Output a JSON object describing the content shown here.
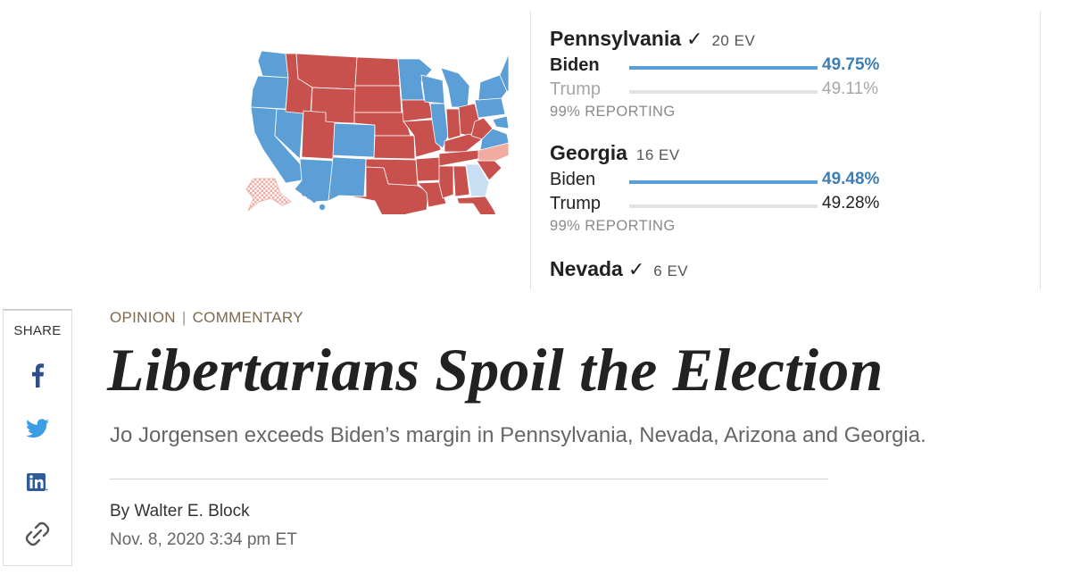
{
  "results": [
    {
      "state": "Pennsylvania",
      "called": true,
      "check": "✓",
      "ev": "20 EV",
      "biden": {
        "name": "Biden",
        "pct": "49.75%",
        "share": 49.75
      },
      "trump": {
        "name": "Trump",
        "pct": "49.11%",
        "share": 49.11
      },
      "reporting": "99% REPORTING"
    },
    {
      "state": "Georgia",
      "called": false,
      "ev": "16 EV",
      "biden": {
        "name": "Biden",
        "pct": "49.48%",
        "share": 49.48
      },
      "trump": {
        "name": "Trump",
        "pct": "49.28%",
        "share": 49.28
      },
      "reporting": "99% REPORTING"
    },
    {
      "state": "Nevada",
      "called": true,
      "check": "✓",
      "ev": "6 EV"
    }
  ],
  "map": {
    "dem_color": "#5b9fd6",
    "rep_color": "#c8514d",
    "lean_rep_color": "#f1aba0",
    "lean_dem_color": "#c8def3"
  },
  "share": {
    "label": "SHARE",
    "icons": [
      "facebook-icon",
      "twitter-icon",
      "linkedin-icon",
      "link-icon"
    ]
  },
  "article": {
    "section": "OPINION",
    "separator": "|",
    "subsection": "COMMENTARY",
    "headline": "Libertarians Spoil the Election",
    "dek": "Jo Jorgensen exceeds Biden’s margin in Pennsylvania, Nevada, Arizona and Georgia.",
    "byline": "By Walter E. Block",
    "date": "Nov. 8, 2020 3:34 pm ET"
  }
}
